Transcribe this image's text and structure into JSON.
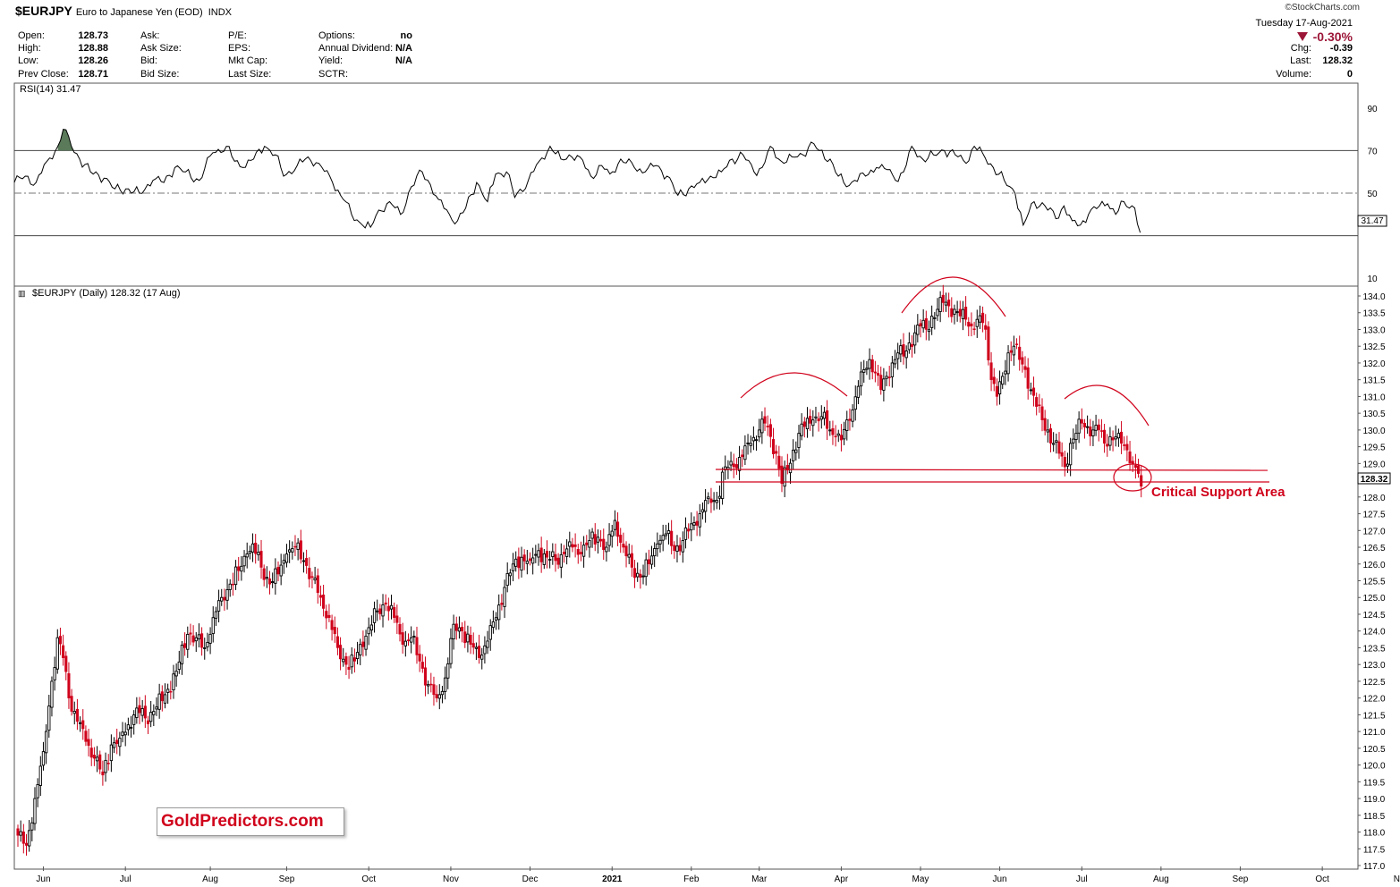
{
  "header": {
    "symbol": "$EURJPY",
    "name": "Euro to Japanese Yen (EOD)",
    "exchange": "INDX",
    "credit": "StockCharts.com",
    "date": "Tuesday  17-Aug-2021",
    "pct_change": "-0.30%",
    "stats_col1": [
      {
        "label": "Open:",
        "value": "128.73"
      },
      {
        "label": "High:",
        "value": "128.88"
      },
      {
        "label": "Low:",
        "value": "128.26"
      },
      {
        "label": "Prev Close:",
        "value": "128.71"
      }
    ],
    "stats_col2": [
      {
        "label": "Ask:"
      },
      {
        "label": "Ask Size:"
      },
      {
        "label": "Bid:"
      },
      {
        "label": "Bid Size:"
      }
    ],
    "stats_col3": [
      {
        "label": "P/E:"
      },
      {
        "label": "EPS:"
      },
      {
        "label": "Mkt Cap:"
      },
      {
        "label": "Last Size:"
      }
    ],
    "stats_col4": [
      {
        "label": "Options:",
        "value": "no"
      },
      {
        "label": "Annual Dividend:",
        "value": "N/A"
      },
      {
        "label": "Yield:",
        "value": "N/A"
      },
      {
        "label": "SCTR:",
        "value": ""
      }
    ],
    "stats_right": [
      {
        "label": "Chg:",
        "value": "-0.39"
      },
      {
        "label": "Last:",
        "value": "128.32"
      },
      {
        "label": "Volume:",
        "value": "0"
      }
    ]
  },
  "watermark": "GoldPredictors.com",
  "annotation": "Critical Support Area",
  "colors": {
    "up": "#000000",
    "down": "#d0021b",
    "annotation": "#d0021b",
    "rsi_fill": "#5a7a5a"
  },
  "chart_data": [
    {
      "type": "line",
      "title": "RSI(14) 31.47",
      "last_value_label": "31.47",
      "ylim": [
        0,
        100
      ],
      "yticks": [
        90,
        70,
        50,
        10
      ],
      "reference_lines": [
        70,
        50,
        30
      ],
      "anchors": [
        [
          0,
          55
        ],
        [
          4,
          58
        ],
        [
          8,
          55
        ],
        [
          12,
          65
        ],
        [
          16,
          72
        ],
        [
          18,
          80
        ],
        [
          21,
          72
        ],
        [
          24,
          66
        ],
        [
          28,
          60
        ],
        [
          33,
          57
        ],
        [
          37,
          52
        ],
        [
          41,
          52
        ],
        [
          46,
          50
        ],
        [
          51,
          56
        ],
        [
          55,
          55
        ],
        [
          59,
          62
        ],
        [
          63,
          60
        ],
        [
          68,
          56
        ],
        [
          73,
          69
        ],
        [
          78,
          72
        ],
        [
          81,
          65
        ],
        [
          84,
          62
        ],
        [
          88,
          66
        ],
        [
          92,
          72
        ],
        [
          96,
          68
        ],
        [
          99,
          58
        ],
        [
          104,
          63
        ],
        [
          108,
          67
        ],
        [
          112,
          64
        ],
        [
          117,
          55
        ],
        [
          121,
          47
        ],
        [
          124,
          40
        ],
        [
          128,
          35
        ],
        [
          131,
          34
        ],
        [
          134,
          42
        ],
        [
          138,
          46
        ],
        [
          142,
          40
        ],
        [
          146,
          53
        ],
        [
          150,
          60
        ],
        [
          153,
          54
        ],
        [
          156,
          47
        ],
        [
          160,
          40
        ],
        [
          163,
          37
        ],
        [
          166,
          43
        ],
        [
          170,
          55
        ],
        [
          174,
          46
        ],
        [
          177,
          59
        ],
        [
          181,
          60
        ],
        [
          184,
          48
        ],
        [
          189,
          56
        ],
        [
          193,
          65
        ],
        [
          197,
          72
        ],
        [
          201,
          66
        ],
        [
          204,
          68
        ],
        [
          208,
          67
        ],
        [
          212,
          58
        ],
        [
          216,
          63
        ],
        [
          219,
          59
        ],
        [
          223,
          66
        ],
        [
          228,
          62
        ],
        [
          232,
          60
        ],
        [
          236,
          63
        ],
        [
          240,
          58
        ],
        [
          244,
          49
        ],
        [
          248,
          52
        ],
        [
          252,
          55
        ],
        [
          256,
          58
        ],
        [
          260,
          60
        ],
        [
          264,
          66
        ],
        [
          268,
          68
        ],
        [
          272,
          60
        ],
        [
          275,
          62
        ],
        [
          278,
          72
        ],
        [
          282,
          65
        ],
        [
          286,
          67
        ],
        [
          290,
          68
        ],
        [
          293,
          74
        ],
        [
          296,
          70
        ],
        [
          300,
          66
        ],
        [
          303,
          58
        ],
        [
          306,
          53
        ],
        [
          309,
          56
        ],
        [
          313,
          58
        ],
        [
          317,
          62
        ],
        [
          321,
          61
        ],
        [
          324,
          56
        ],
        [
          327,
          60
        ],
        [
          330,
          72
        ],
        [
          334,
          66
        ],
        [
          338,
          68
        ],
        [
          342,
          70
        ],
        [
          346,
          68
        ],
        [
          350,
          64
        ],
        [
          353,
          72
        ],
        [
          356,
          69
        ],
        [
          360,
          62
        ],
        [
          364,
          56
        ],
        [
          368,
          50
        ],
        [
          371,
          35
        ],
        [
          375,
          46
        ],
        [
          379,
          44
        ],
        [
          383,
          38
        ],
        [
          386,
          44
        ],
        [
          389,
          37
        ],
        [
          392,
          35
        ],
        [
          395,
          40
        ],
        [
          399,
          44
        ],
        [
          402,
          45
        ],
        [
          405,
          40
        ],
        [
          408,
          46
        ],
        [
          412,
          43
        ],
        [
          414,
          31.47
        ]
      ],
      "overbought_fills": [
        [
          16,
          22
        ],
        [
          55,
          57
        ],
        [
          62,
          65
        ],
        [
          147,
          149
        ],
        [
          201,
          205
        ],
        [
          250,
          254
        ]
      ]
    },
    {
      "type": "candlestick",
      "title": "$EURJPY (Daily) 128.32 (17 Aug)",
      "last_value_label": "128.32",
      "ylim": [
        116.9,
        134.25
      ],
      "yticks": [
        117.0,
        117.5,
        118.0,
        118.5,
        119.0,
        119.5,
        120.0,
        120.5,
        121.0,
        121.5,
        122.0,
        122.5,
        123.0,
        123.5,
        124.0,
        124.5,
        125.0,
        125.5,
        126.0,
        126.5,
        127.0,
        127.5,
        128.0,
        128.5,
        129.0,
        129.5,
        130.0,
        130.5,
        131.0,
        131.5,
        132.0,
        132.5,
        133.0,
        133.5,
        134.0
      ],
      "xticks": [
        {
          "label": "Jun",
          "bar": 9
        },
        {
          "label": "Jul",
          "bar": 38
        },
        {
          "label": "Aug",
          "bar": 68
        },
        {
          "label": "Sep",
          "bar": 95
        },
        {
          "label": "Oct",
          "bar": 124
        },
        {
          "label": "Nov",
          "bar": 153
        },
        {
          "label": "Dec",
          "bar": 181
        },
        {
          "label": "2021",
          "bar": 210,
          "bold": true
        },
        {
          "label": "Feb",
          "bar": 238
        },
        {
          "label": "Mar",
          "bar": 262
        },
        {
          "label": "Apr",
          "bar": 291
        },
        {
          "label": "May",
          "bar": 319
        },
        {
          "label": "Jun",
          "bar": 347
        },
        {
          "label": "Jul",
          "bar": 376
        },
        {
          "label": "Aug",
          "bar": 404
        },
        {
          "label": "Sep",
          "bar": 432
        },
        {
          "label": "Oct",
          "bar": 461
        },
        {
          "label": "Nov",
          "bar": 489
        }
      ],
      "close_anchors": [
        [
          0,
          117.9
        ],
        [
          3,
          117.6
        ],
        [
          6,
          119.0
        ],
        [
          9,
          120.4
        ],
        [
          12,
          122.5
        ],
        [
          14,
          123.8
        ],
        [
          16,
          123.2
        ],
        [
          18,
          122.0
        ],
        [
          21,
          121.3
        ],
        [
          24,
          120.7
        ],
        [
          27,
          120.2
        ],
        [
          30,
          119.7
        ],
        [
          33,
          120.6
        ],
        [
          36,
          120.8
        ],
        [
          39,
          121.2
        ],
        [
          42,
          121.7
        ],
        [
          45,
          121.4
        ],
        [
          48,
          121.6
        ],
        [
          52,
          122.1
        ],
        [
          56,
          122.8
        ],
        [
          60,
          123.9
        ],
        [
          63,
          123.8
        ],
        [
          66,
          123.5
        ],
        [
          69,
          124.4
        ],
        [
          72,
          125.0
        ],
        [
          75,
          125.4
        ],
        [
          78,
          125.8
        ],
        [
          81,
          126.3
        ],
        [
          83,
          126.6
        ],
        [
          86,
          125.9
        ],
        [
          89,
          125.4
        ],
        [
          92,
          125.7
        ],
        [
          95,
          126.3
        ],
        [
          98,
          126.5
        ],
        [
          101,
          126.1
        ],
        [
          104,
          125.6
        ],
        [
          107,
          125.0
        ],
        [
          110,
          124.4
        ],
        [
          113,
          123.5
        ],
        [
          116,
          123.0
        ],
        [
          119,
          123.1
        ],
        [
          121,
          123.6
        ],
        [
          124,
          124.1
        ],
        [
          127,
          124.6
        ],
        [
          130,
          124.8
        ],
        [
          133,
          124.4
        ],
        [
          136,
          123.6
        ],
        [
          139,
          123.8
        ],
        [
          142,
          123.1
        ],
        [
          145,
          122.4
        ],
        [
          148,
          122.0
        ],
        [
          151,
          122.6
        ],
        [
          154,
          124.2
        ],
        [
          157,
          124.0
        ],
        [
          160,
          123.6
        ],
        [
          163,
          123.2
        ],
        [
          166,
          123.7
        ],
        [
          169,
          124.4
        ],
        [
          172,
          125.3
        ],
        [
          175,
          126.0
        ],
        [
          178,
          126.2
        ],
        [
          181,
          126.1
        ],
        [
          184,
          126.4
        ],
        [
          187,
          126.2
        ],
        [
          190,
          126.1
        ],
        [
          193,
          126.3
        ],
        [
          196,
          126.5
        ],
        [
          199,
          126.3
        ],
        [
          202,
          126.7
        ],
        [
          205,
          126.8
        ],
        [
          208,
          126.5
        ],
        [
          211,
          127.3
        ],
        [
          214,
          126.5
        ],
        [
          217,
          125.9
        ],
        [
          220,
          125.6
        ],
        [
          223,
          126.0
        ],
        [
          226,
          126.6
        ],
        [
          229,
          126.9
        ],
        [
          232,
          126.4
        ],
        [
          235,
          126.7
        ],
        [
          238,
          127.2
        ],
        [
          241,
          127.5
        ],
        [
          244,
          128.0
        ],
        [
          247,
          127.9
        ],
        [
          250,
          128.9
        ],
        [
          253,
          128.9
        ],
        [
          256,
          129.2
        ],
        [
          259,
          129.6
        ],
        [
          262,
          130.0
        ],
        [
          264,
          130.2
        ],
        [
          266,
          129.8
        ],
        [
          268,
          129.3
        ],
        [
          270,
          128.4
        ],
        [
          272,
          128.8
        ],
        [
          274,
          129.4
        ],
        [
          276,
          129.9
        ],
        [
          278,
          130.1
        ],
        [
          281,
          130.3
        ],
        [
          284,
          130.4
        ],
        [
          287,
          130.0
        ],
        [
          289,
          129.8
        ],
        [
          291,
          129.7
        ],
        [
          293,
          130.3
        ],
        [
          295,
          130.6
        ],
        [
          297,
          131.3
        ],
        [
          299,
          131.8
        ],
        [
          301,
          132.1
        ],
        [
          303,
          131.7
        ],
        [
          305,
          131.2
        ],
        [
          307,
          131.6
        ],
        [
          309,
          132.0
        ],
        [
          311,
          132.3
        ],
        [
          313,
          132.2
        ],
        [
          315,
          132.6
        ],
        [
          317,
          132.9
        ],
        [
          319,
          133.1
        ],
        [
          321,
          133.0
        ],
        [
          323,
          133.4
        ],
        [
          325,
          133.6
        ],
        [
          327,
          133.8
        ],
        [
          329,
          133.7
        ],
        [
          331,
          133.6
        ],
        [
          333,
          133.4
        ],
        [
          335,
          133.3
        ],
        [
          337,
          133.1
        ],
        [
          339,
          133.3
        ],
        [
          341,
          133.2
        ],
        [
          342,
          133.0
        ],
        [
          344,
          131.5
        ],
        [
          346,
          131.0
        ],
        [
          348,
          131.6
        ],
        [
          350,
          132.3
        ],
        [
          352,
          132.5
        ],
        [
          354,
          132.1
        ],
        [
          356,
          131.8
        ],
        [
          358,
          131.2
        ],
        [
          360,
          130.7
        ],
        [
          362,
          130.3
        ],
        [
          364,
          130.0
        ],
        [
          366,
          129.6
        ],
        [
          368,
          129.3
        ],
        [
          370,
          128.9
        ],
        [
          372,
          129.6
        ],
        [
          374,
          129.9
        ],
        [
          376,
          130.2
        ],
        [
          378,
          130.1
        ],
        [
          380,
          130.0
        ],
        [
          382,
          130.0
        ],
        [
          384,
          129.6
        ],
        [
          386,
          129.8
        ],
        [
          388,
          129.8
        ],
        [
          390,
          129.6
        ],
        [
          392,
          129.4
        ],
        [
          394,
          129.0
        ],
        [
          396,
          128.7
        ],
        [
          397,
          128.32
        ]
      ]
    }
  ]
}
